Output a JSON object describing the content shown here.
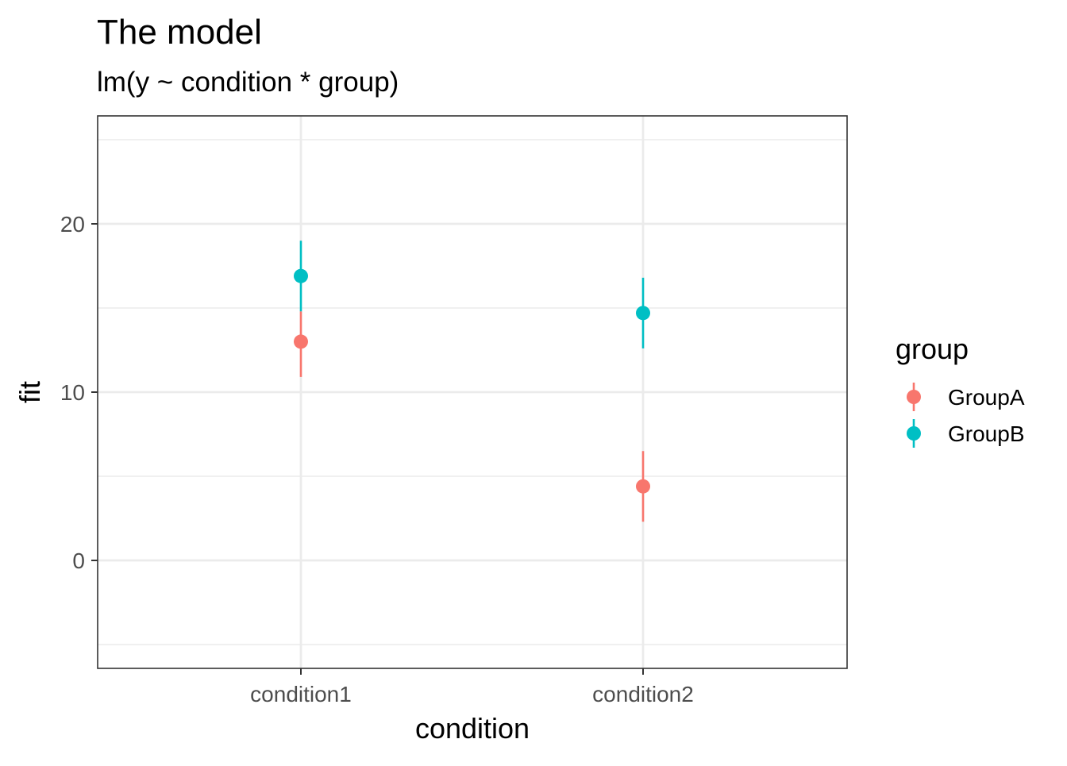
{
  "chart_data": {
    "type": "scatter",
    "title": "The model",
    "subtitle": "lm(y ~ condition * group)",
    "xlabel": "condition",
    "ylabel": "fit",
    "categories": [
      "condition1",
      "condition2"
    ],
    "ylim": [
      -6.5,
      26.5
    ],
    "yticks": [
      0,
      10,
      20
    ],
    "grid": true,
    "legend": {
      "title": "group",
      "placement": "right"
    },
    "series": [
      {
        "name": "GroupA",
        "color": "#F8766D",
        "values": [
          13.0,
          4.4
        ],
        "lower": [
          10.9,
          2.3
        ],
        "upper": [
          14.8,
          6.5
        ]
      },
      {
        "name": "GroupB",
        "color": "#00BFC4",
        "values": [
          16.9,
          14.7
        ],
        "lower": [
          14.8,
          12.6
        ],
        "upper": [
          19.0,
          16.8
        ]
      }
    ]
  }
}
